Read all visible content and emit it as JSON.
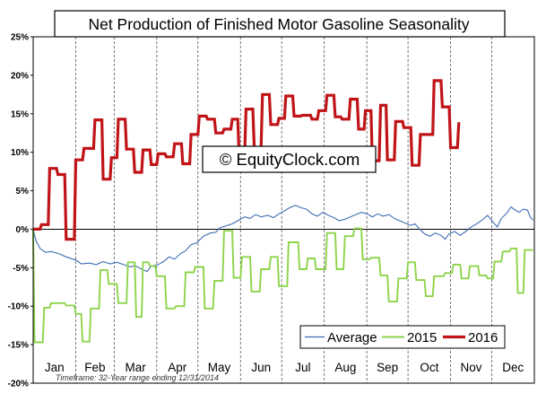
{
  "chart_data": {
    "type": "line",
    "title": "Net Production of Finished Motor Gasoline Seasonality",
    "watermark": "© EquityClock.com",
    "footnote": "Timeframe: 32-Year range ending 12/31/2014",
    "months": [
      "Jan",
      "Feb",
      "Mar",
      "Apr",
      "May",
      "Jun",
      "Jul",
      "Aug",
      "Sep",
      "Oct",
      "Nov",
      "Dec"
    ],
    "x_unit": "day_of_year",
    "xlim": [
      1,
      366
    ],
    "y_ticks": [
      "25%",
      "20%",
      "15%",
      "10%",
      "5%",
      "0%",
      "-5%",
      "-10%",
      "-15%",
      "-20%"
    ],
    "ylim": [
      -20,
      25
    ],
    "grid": "vertical dashed at month boundaries",
    "legend_position": "bottom-center",
    "series": [
      {
        "name": "Average",
        "color": "#3f6db4",
        "style": "thin",
        "points": [
          [
            1,
            0
          ],
          [
            3,
            -1.5
          ],
          [
            6,
            -2.5
          ],
          [
            10,
            -3
          ],
          [
            14,
            -2.9
          ],
          [
            20,
            -3.2
          ],
          [
            25,
            -3.6
          ],
          [
            32,
            -4
          ],
          [
            36,
            -4.5
          ],
          [
            42,
            -4.4
          ],
          [
            47,
            -4.6
          ],
          [
            52,
            -4.2
          ],
          [
            57,
            -4.5
          ],
          [
            62,
            -4.3
          ],
          [
            67,
            -4.6
          ],
          [
            72,
            -4.9
          ],
          [
            75,
            -4.7
          ],
          [
            80,
            -5.2
          ],
          [
            84,
            -5.5
          ],
          [
            87,
            -4.8
          ],
          [
            92,
            -4.6
          ],
          [
            96,
            -4.2
          ],
          [
            100,
            -3.6
          ],
          [
            104,
            -3.9
          ],
          [
            108,
            -3.2
          ],
          [
            112,
            -2.8
          ],
          [
            116,
            -2
          ],
          [
            120,
            -1.8
          ],
          [
            125,
            -0.9
          ],
          [
            130,
            -0.5
          ],
          [
            134,
            -0.4
          ],
          [
            137,
            0.2
          ],
          [
            141,
            0.4
          ],
          [
            146,
            0.7
          ],
          [
            150,
            1.1
          ],
          [
            155,
            1.6
          ],
          [
            159,
            1.4
          ],
          [
            163,
            1.9
          ],
          [
            167,
            1.6
          ],
          [
            172,
            1.8
          ],
          [
            176,
            1.5
          ],
          [
            180,
            2
          ],
          [
            184,
            2.4
          ],
          [
            188,
            2.8
          ],
          [
            192,
            3.1
          ],
          [
            196,
            2.8
          ],
          [
            200,
            2.6
          ],
          [
            204,
            2
          ],
          [
            208,
            1.7
          ],
          [
            212,
            2.2
          ],
          [
            216,
            1.8
          ],
          [
            220,
            1.5
          ],
          [
            224,
            1.1
          ],
          [
            228,
            1.3
          ],
          [
            232,
            1.6
          ],
          [
            236,
            1.9
          ],
          [
            240,
            2.2
          ],
          [
            244,
            2
          ],
          [
            248,
            1.6
          ],
          [
            252,
            2
          ],
          [
            256,
            1.7
          ],
          [
            260,
            1.9
          ],
          [
            264,
            1.4
          ],
          [
            268,
            1.1
          ],
          [
            272,
            0.8
          ],
          [
            276,
            0.5
          ],
          [
            279,
            0.7
          ],
          [
            282,
            0.1
          ],
          [
            286,
            -0.6
          ],
          [
            290,
            -0.9
          ],
          [
            294,
            -0.5
          ],
          [
            298,
            -0.8
          ],
          [
            301,
            -1.3
          ],
          [
            304,
            -0.6
          ],
          [
            308,
            -0.3
          ],
          [
            312,
            -0.8
          ],
          [
            316,
            -0.3
          ],
          [
            320,
            0.3
          ],
          [
            324,
            0.7
          ],
          [
            328,
            1.2
          ],
          [
            332,
            1.8
          ],
          [
            336,
            0.9
          ],
          [
            339,
            0.3
          ],
          [
            342,
            1.4
          ],
          [
            346,
            2.1
          ],
          [
            349,
            2.9
          ],
          [
            352,
            2.5
          ],
          [
            355,
            2.2
          ],
          [
            358,
            2.6
          ],
          [
            361,
            2.5
          ],
          [
            363,
            1.6
          ],
          [
            365,
            1.2
          ]
        ]
      },
      {
        "name": "2015",
        "color": "#8dd44a",
        "style": "medium",
        "points": [
          [
            1,
            0
          ],
          [
            2,
            -14.7
          ],
          [
            8,
            -14.7
          ],
          [
            9,
            -10.2
          ],
          [
            13,
            -10.2
          ],
          [
            14,
            -9.6
          ],
          [
            24,
            -9.6
          ],
          [
            25,
            -9.9
          ],
          [
            31,
            -9.9
          ],
          [
            32,
            -11
          ],
          [
            36,
            -11
          ],
          [
            37,
            -14.6
          ],
          [
            42,
            -14.6
          ],
          [
            43,
            -10.3
          ],
          [
            49,
            -10.3
          ],
          [
            50,
            -5.3
          ],
          [
            55,
            -5.3
          ],
          [
            56,
            -7.1
          ],
          [
            62,
            -7.1
          ],
          [
            63,
            -9.6
          ],
          [
            69,
            -9.6
          ],
          [
            70,
            -4.3
          ],
          [
            75,
            -4.3
          ],
          [
            76,
            -11.4
          ],
          [
            80,
            -11.4
          ],
          [
            81,
            -4.3
          ],
          [
            85,
            -4.3
          ],
          [
            86,
            -4.8
          ],
          [
            90,
            -4.8
          ],
          [
            91,
            -6.1
          ],
          [
            97,
            -6.1
          ],
          [
            98,
            -10.3
          ],
          [
            104,
            -10.3
          ],
          [
            105,
            -10
          ],
          [
            111,
            -10
          ],
          [
            112,
            -5.6
          ],
          [
            118,
            -5.6
          ],
          [
            119,
            -4.9
          ],
          [
            125,
            -4.9
          ],
          [
            126,
            -10.3
          ],
          [
            132,
            -10.3
          ],
          [
            133,
            -6.7
          ],
          [
            139,
            -6.7
          ],
          [
            140,
            -0.2
          ],
          [
            146,
            -0.2
          ],
          [
            147,
            -6.3
          ],
          [
            152,
            -6.3
          ],
          [
            153,
            -3.6
          ],
          [
            159,
            -3.6
          ],
          [
            160,
            -8.1
          ],
          [
            166,
            -8.1
          ],
          [
            167,
            -5.2
          ],
          [
            173,
            -5.2
          ],
          [
            174,
            -3.6
          ],
          [
            179,
            -3.6
          ],
          [
            180,
            -7.4
          ],
          [
            186,
            -7.4
          ],
          [
            187,
            -1.7
          ],
          [
            194,
            -1.7
          ],
          [
            195,
            -5.2
          ],
          [
            200,
            -5.2
          ],
          [
            201,
            -3.8
          ],
          [
            206,
            -3.8
          ],
          [
            207,
            -5.2
          ],
          [
            214,
            -5.2
          ],
          [
            215,
            -0.5
          ],
          [
            221,
            -0.5
          ],
          [
            222,
            -5.2
          ],
          [
            227,
            -5.2
          ],
          [
            228,
            -0.9
          ],
          [
            234,
            -0.9
          ],
          [
            235,
            0.1
          ],
          [
            240,
            0.1
          ],
          [
            241,
            -3.9
          ],
          [
            246,
            -3.9
          ],
          [
            247,
            -3.7
          ],
          [
            253,
            -3.7
          ],
          [
            254,
            -6
          ],
          [
            259,
            -6
          ],
          [
            260,
            -9.4
          ],
          [
            266,
            -9.4
          ],
          [
            267,
            -6.4
          ],
          [
            273,
            -6.4
          ],
          [
            274,
            -4.3
          ],
          [
            279,
            -4.3
          ],
          [
            280,
            -6.6
          ],
          [
            286,
            -6.6
          ],
          [
            287,
            -8.7
          ],
          [
            292,
            -8.7
          ],
          [
            293,
            -6.1
          ],
          [
            300,
            -6.1
          ],
          [
            301,
            -5.7
          ],
          [
            306,
            -5.7
          ],
          [
            307,
            -4.6
          ],
          [
            312,
            -4.6
          ],
          [
            313,
            -6.4
          ],
          [
            318,
            -6.4
          ],
          [
            319,
            -4.8
          ],
          [
            325,
            -4.8
          ],
          [
            326,
            -6
          ],
          [
            331,
            -6
          ],
          [
            332,
            -6.4
          ],
          [
            336,
            -6.4
          ],
          [
            337,
            -4.2
          ],
          [
            342,
            -4.2
          ],
          [
            343,
            -2.9
          ],
          [
            348,
            -2.9
          ],
          [
            349,
            -2.5
          ],
          [
            353,
            -2.5
          ],
          [
            354,
            -8.3
          ],
          [
            358,
            -8.3
          ],
          [
            359,
            -2.7
          ],
          [
            365,
            -2.7
          ]
        ]
      },
      {
        "name": "2016",
        "color": "#c01418",
        "style": "thick",
        "points": [
          [
            1,
            0
          ],
          [
            6,
            0
          ],
          [
            7,
            0.6
          ],
          [
            12,
            0.6
          ],
          [
            13,
            7.9
          ],
          [
            18,
            7.9
          ],
          [
            19,
            7.1
          ],
          [
            24,
            7.1
          ],
          [
            25,
            -1.3
          ],
          [
            31,
            -1.3
          ],
          [
            32,
            9
          ],
          [
            37,
            9
          ],
          [
            38,
            10.5
          ],
          [
            45,
            10.5
          ],
          [
            46,
            14.2
          ],
          [
            51,
            14.2
          ],
          [
            52,
            6.5
          ],
          [
            57,
            6.5
          ],
          [
            58,
            9.3
          ],
          [
            62,
            9.3
          ],
          [
            63,
            14.3
          ],
          [
            68,
            14.3
          ],
          [
            69,
            10.4
          ],
          [
            74,
            10.4
          ],
          [
            75,
            7.4
          ],
          [
            80,
            7.4
          ],
          [
            81,
            10.3
          ],
          [
            86,
            10.3
          ],
          [
            87,
            8.4
          ],
          [
            91,
            8.4
          ],
          [
            92,
            9.8
          ],
          [
            97,
            9.8
          ],
          [
            98,
            9.4
          ],
          [
            103,
            9.4
          ],
          [
            104,
            11.1
          ],
          [
            109,
            11.1
          ],
          [
            110,
            8.5
          ],
          [
            115,
            8.5
          ],
          [
            116,
            12.3
          ],
          [
            121,
            12.3
          ],
          [
            122,
            14.7
          ],
          [
            127,
            14.7
          ],
          [
            128,
            14.3
          ],
          [
            133,
            14.3
          ],
          [
            134,
            12.5
          ],
          [
            139,
            12.5
          ],
          [
            140,
            13
          ],
          [
            145,
            13
          ],
          [
            146,
            14.3
          ],
          [
            150,
            14.3
          ],
          [
            151,
            9.7
          ],
          [
            155,
            9.7
          ],
          [
            156,
            15.6
          ],
          [
            161,
            15.6
          ],
          [
            162,
            10.6
          ],
          [
            167,
            10.6
          ],
          [
            168,
            17.5
          ],
          [
            173,
            17.5
          ],
          [
            174,
            13.6
          ],
          [
            179,
            13.6
          ],
          [
            180,
            14.4
          ],
          [
            184,
            14.4
          ],
          [
            185,
            17.3
          ],
          [
            190,
            17.3
          ],
          [
            191,
            14.7
          ],
          [
            196,
            14.7
          ],
          [
            197,
            14.8
          ],
          [
            203,
            14.8
          ],
          [
            204,
            14.3
          ],
          [
            208,
            14.3
          ],
          [
            209,
            15.4
          ],
          [
            214,
            15.4
          ],
          [
            215,
            17.4
          ],
          [
            220,
            17.4
          ],
          [
            221,
            14.6
          ],
          [
            225,
            14.6
          ],
          [
            226,
            14.3
          ],
          [
            231,
            14.3
          ],
          [
            232,
            16.9
          ],
          [
            237,
            16.9
          ],
          [
            238,
            13
          ],
          [
            242,
            13
          ],
          [
            243,
            15.4
          ],
          [
            247,
            15.4
          ],
          [
            248,
            8.9
          ],
          [
            253,
            8.9
          ],
          [
            254,
            16.1
          ],
          [
            258,
            16.1
          ],
          [
            259,
            9
          ],
          [
            264,
            9
          ],
          [
            265,
            14
          ],
          [
            270,
            14
          ],
          [
            271,
            13.2
          ],
          [
            276,
            13.2
          ],
          [
            277,
            8.3
          ],
          [
            282,
            8.3
          ],
          [
            283,
            12.3
          ],
          [
            292,
            12.3
          ],
          [
            293,
            19.3
          ],
          [
            298,
            19.3
          ],
          [
            299,
            15.9
          ],
          [
            304,
            15.9
          ],
          [
            305,
            10.6
          ],
          [
            310,
            10.6
          ],
          [
            311,
            13.9
          ]
        ]
      }
    ]
  }
}
